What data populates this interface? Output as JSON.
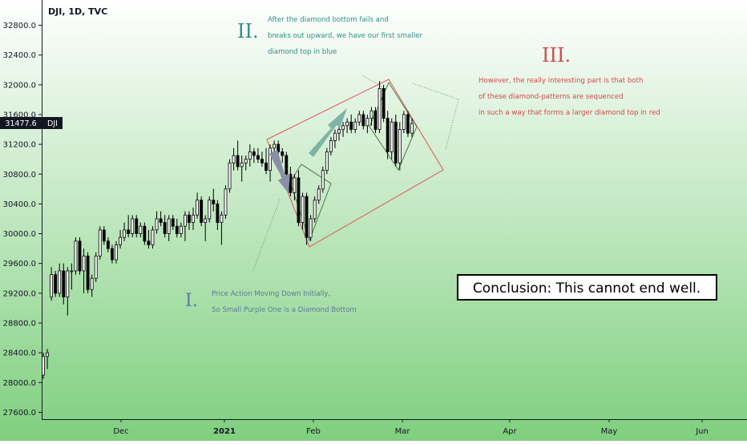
{
  "header": {
    "symbol": "DJI, 1D, TVC"
  },
  "price_badge": {
    "value": "31477.6",
    "tag": "DJI",
    "color": "#131722"
  },
  "colors": {
    "background_top": "#ffffff",
    "background_bottom": "#7fcf7f",
    "up_candle": "#ffffff",
    "down_candle": "#000000",
    "candle_border": "#000000",
    "small_diamond_stroke": "#4a7a4a",
    "big_diamond_stroke": "#e05656",
    "purple_arrow": "#8a8ea8",
    "teal_arrow": "#7fb3a5",
    "annotation_I": "#5f7a9a",
    "annotation_II": "#2f8f85",
    "annotation_III": "#d24a4a"
  },
  "annotations": {
    "one": {
      "numeral": "I.",
      "lines": [
        "Price Action Moving Down Initially,",
        "So Small Purple One is a Diamond Bottom"
      ]
    },
    "two": {
      "numeral": "II.",
      "lines": [
        "After the diamond bottom fails and",
        "breaks out upward, we have our first smaller",
        "diamond top in blue"
      ]
    },
    "three": {
      "numeral": "III.",
      "lines": [
        "However, the really interesting part is that both",
        "of these diamond-patterns are sequenced",
        "in such a way that forms a larger diamond top in red"
      ]
    },
    "conclusion": "Conclusion: This cannot end well."
  },
  "chart_data": {
    "type": "candlestick",
    "title": "DJI, 1D, TVC",
    "x_labels": [
      "Dec",
      "2021",
      "Feb",
      "Mar",
      "Apr",
      "May",
      "Jun"
    ],
    "y_ticks": [
      27600,
      28000,
      28400,
      28800,
      29200,
      29600,
      30000,
      30400,
      30800,
      31200,
      31600,
      32000,
      32400,
      32800
    ],
    "y_tick_labels": [
      "27600.0",
      "28000.0",
      "28400.0",
      "28800.0",
      "29200.0",
      "29600.0",
      "30000.0",
      "30400.0",
      "30800.0",
      "31200.0",
      "31600.0",
      "32000.0",
      "32400.0",
      "32800.0"
    ],
    "ylim": [
      27500,
      33100
    ],
    "grid": false,
    "last_price": 31477.6,
    "candles": [
      {
        "o": 28100,
        "h": 28400,
        "l": 28050,
        "c": 28350
      },
      {
        "o": 28350,
        "h": 28450,
        "l": 28180,
        "c": 28400
      },
      {
        "o": 29150,
        "h": 29550,
        "l": 29100,
        "c": 29450
      },
      {
        "o": 29450,
        "h": 29500,
        "l": 29150,
        "c": 29200
      },
      {
        "o": 29200,
        "h": 29600,
        "l": 29150,
        "c": 29500
      },
      {
        "o": 29500,
        "h": 29600,
        "l": 29050,
        "c": 29150
      },
      {
        "o": 29150,
        "h": 29550,
        "l": 28900,
        "c": 29500
      },
      {
        "o": 29500,
        "h": 29600,
        "l": 29250,
        "c": 29500
      },
      {
        "o": 29500,
        "h": 29950,
        "l": 29450,
        "c": 29900
      },
      {
        "o": 29900,
        "h": 29950,
        "l": 29450,
        "c": 29500
      },
      {
        "o": 29500,
        "h": 29800,
        "l": 29200,
        "c": 29700
      },
      {
        "o": 29700,
        "h": 29750,
        "l": 29200,
        "c": 29250
      },
      {
        "o": 29250,
        "h": 29450,
        "l": 29150,
        "c": 29400
      },
      {
        "o": 29400,
        "h": 29750,
        "l": 29350,
        "c": 29700
      },
      {
        "o": 29700,
        "h": 30100,
        "l": 29650,
        "c": 30050
      },
      {
        "o": 30050,
        "h": 30100,
        "l": 29850,
        "c": 29900
      },
      {
        "o": 29900,
        "h": 29950,
        "l": 29750,
        "c": 29800
      },
      {
        "o": 29800,
        "h": 29850,
        "l": 29600,
        "c": 29650
      },
      {
        "o": 29650,
        "h": 29900,
        "l": 29600,
        "c": 29850
      },
      {
        "o": 29850,
        "h": 30050,
        "l": 29800,
        "c": 29950
      },
      {
        "o": 29950,
        "h": 30150,
        "l": 29900,
        "c": 30050
      },
      {
        "o": 30050,
        "h": 30250,
        "l": 29950,
        "c": 30000
      },
      {
        "o": 30000,
        "h": 30250,
        "l": 29950,
        "c": 30200
      },
      {
        "o": 30200,
        "h": 30250,
        "l": 29950,
        "c": 30000
      },
      {
        "o": 30000,
        "h": 30150,
        "l": 29950,
        "c": 30100
      },
      {
        "o": 30100,
        "h": 30150,
        "l": 29850,
        "c": 29900
      },
      {
        "o": 29900,
        "h": 30050,
        "l": 29800,
        "c": 29850
      },
      {
        "o": 29850,
        "h": 30100,
        "l": 29800,
        "c": 30050
      },
      {
        "o": 30050,
        "h": 30300,
        "l": 30000,
        "c": 30200
      },
      {
        "o": 30200,
        "h": 30300,
        "l": 30100,
        "c": 30150
      },
      {
        "o": 30150,
        "h": 30250,
        "l": 29950,
        "c": 30000
      },
      {
        "o": 30000,
        "h": 30250,
        "l": 29900,
        "c": 30200
      },
      {
        "o": 30200,
        "h": 30250,
        "l": 30050,
        "c": 30100
      },
      {
        "o": 30100,
        "h": 30200,
        "l": 29950,
        "c": 30000
      },
      {
        "o": 30000,
        "h": 30150,
        "l": 29950,
        "c": 30100
      },
      {
        "o": 30100,
        "h": 30300,
        "l": 29900,
        "c": 30250
      },
      {
        "o": 30250,
        "h": 30300,
        "l": 30050,
        "c": 30150
      },
      {
        "o": 30150,
        "h": 30350,
        "l": 30050,
        "c": 30250
      },
      {
        "o": 30250,
        "h": 30550,
        "l": 30200,
        "c": 30450
      },
      {
        "o": 30450,
        "h": 30500,
        "l": 30100,
        "c": 30150
      },
      {
        "o": 30150,
        "h": 30250,
        "l": 29900,
        "c": 30200
      },
      {
        "o": 30200,
        "h": 30500,
        "l": 30150,
        "c": 30450
      },
      {
        "o": 30450,
        "h": 30600,
        "l": 30300,
        "c": 30400
      },
      {
        "o": 30400,
        "h": 30450,
        "l": 30050,
        "c": 30150
      },
      {
        "o": 30150,
        "h": 30300,
        "l": 29850,
        "c": 30250
      },
      {
        "o": 30250,
        "h": 30650,
        "l": 30200,
        "c": 30600
      },
      {
        "o": 30600,
        "h": 31000,
        "l": 30550,
        "c": 30950
      },
      {
        "o": 30950,
        "h": 31150,
        "l": 30850,
        "c": 31050
      },
      {
        "o": 31050,
        "h": 31250,
        "l": 30850,
        "c": 30900
      },
      {
        "o": 30900,
        "h": 31050,
        "l": 30700,
        "c": 30950
      },
      {
        "o": 30950,
        "h": 31050,
        "l": 30850,
        "c": 31000
      },
      {
        "o": 31000,
        "h": 31200,
        "l": 30900,
        "c": 31100
      },
      {
        "o": 31100,
        "h": 31150,
        "l": 30950,
        "c": 31050
      },
      {
        "o": 31050,
        "h": 31150,
        "l": 30950,
        "c": 31000
      },
      {
        "o": 31000,
        "h": 31100,
        "l": 30900,
        "c": 30950
      },
      {
        "o": 30950,
        "h": 31150,
        "l": 30800,
        "c": 30850
      },
      {
        "o": 30850,
        "h": 31200,
        "l": 30700,
        "c": 31150
      },
      {
        "o": 31150,
        "h": 31250,
        "l": 31050,
        "c": 31200
      },
      {
        "o": 31200,
        "h": 31250,
        "l": 31000,
        "c": 31100
      },
      {
        "o": 31100,
        "h": 31150,
        "l": 30950,
        "c": 31050
      },
      {
        "o": 31050,
        "h": 31100,
        "l": 30750,
        "c": 30800
      },
      {
        "o": 30800,
        "h": 30900,
        "l": 30500,
        "c": 30550
      },
      {
        "o": 30550,
        "h": 30800,
        "l": 30450,
        "c": 30750
      },
      {
        "o": 30750,
        "h": 30850,
        "l": 30100,
        "c": 30150
      },
      {
        "o": 30150,
        "h": 30550,
        "l": 30050,
        "c": 30500
      },
      {
        "o": 30500,
        "h": 30550,
        "l": 29850,
        "c": 29950
      },
      {
        "o": 29950,
        "h": 30250,
        "l": 29900,
        "c": 30200
      },
      {
        "o": 30200,
        "h": 30500,
        "l": 30150,
        "c": 30450
      },
      {
        "o": 30450,
        "h": 30650,
        "l": 30400,
        "c": 30600
      },
      {
        "o": 30600,
        "h": 30900,
        "l": 30550,
        "c": 30850
      },
      {
        "o": 30850,
        "h": 31150,
        "l": 30800,
        "c": 31100
      },
      {
        "o": 31100,
        "h": 31300,
        "l": 31050,
        "c": 31250
      },
      {
        "o": 31250,
        "h": 31400,
        "l": 31150,
        "c": 31350
      },
      {
        "o": 31350,
        "h": 31450,
        "l": 31250,
        "c": 31400
      },
      {
        "o": 31400,
        "h": 31500,
        "l": 31300,
        "c": 31450
      },
      {
        "o": 31450,
        "h": 31550,
        "l": 31350,
        "c": 31500
      },
      {
        "o": 31500,
        "h": 31600,
        "l": 31350,
        "c": 31400
      },
      {
        "o": 31400,
        "h": 31550,
        "l": 31350,
        "c": 31500
      },
      {
        "o": 31500,
        "h": 31650,
        "l": 31450,
        "c": 31600
      },
      {
        "o": 31600,
        "h": 31650,
        "l": 31400,
        "c": 31450
      },
      {
        "o": 31450,
        "h": 31600,
        "l": 31350,
        "c": 31550
      },
      {
        "o": 31550,
        "h": 31700,
        "l": 31450,
        "c": 31650
      },
      {
        "o": 31650,
        "h": 31700,
        "l": 31350,
        "c": 31400
      },
      {
        "o": 31400,
        "h": 32050,
        "l": 31350,
        "c": 31950
      },
      {
        "o": 31950,
        "h": 32000,
        "l": 31500,
        "c": 31550
      },
      {
        "o": 31550,
        "h": 31650,
        "l": 31000,
        "c": 31100
      },
      {
        "o": 31100,
        "h": 31550,
        "l": 31000,
        "c": 31500
      },
      {
        "o": 31500,
        "h": 31600,
        "l": 30900,
        "c": 30950
      },
      {
        "o": 30950,
        "h": 31500,
        "l": 30850,
        "c": 31400
      },
      {
        "o": 31400,
        "h": 31650,
        "l": 31350,
        "c": 31600
      },
      {
        "o": 31600,
        "h": 31650,
        "l": 31300,
        "c": 31350
      },
      {
        "o": 31350,
        "h": 31550,
        "l": 31300,
        "c": 31480
      }
    ]
  }
}
